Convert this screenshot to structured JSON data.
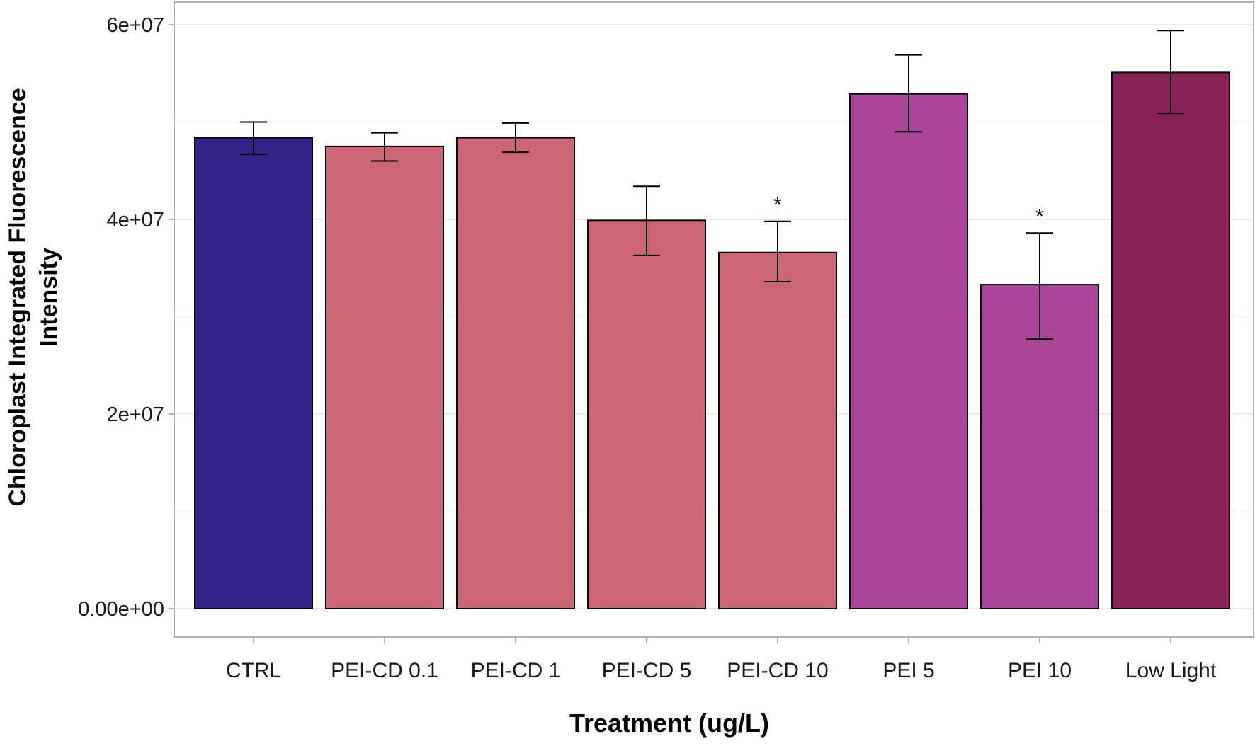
{
  "chart_data": {
    "type": "bar",
    "title": "",
    "xlabel": "Treatment (ug/L)",
    "ylabel": [
      "Chloroplast Integrated Fluorescence",
      "Intensity"
    ],
    "ylim": [
      0,
      60000000
    ],
    "yticks": [
      0,
      20000000,
      40000000,
      60000000
    ],
    "ytick_labels": [
      "0.00e+00",
      "2e+07",
      "4e+07",
      "6e+07"
    ],
    "grid": true,
    "legend": "none",
    "categories": [
      "CTRL",
      "PEI-CD 0.1",
      "PEI-CD 1",
      "PEI-CD 5",
      "PEI-CD 10",
      "PEI 5",
      "PEI 10",
      "Low Light"
    ],
    "values": [
      48400000,
      47500000,
      48400000,
      39900000,
      36600000,
      52900000,
      33300000,
      55100000
    ],
    "error_upper": [
      50000000,
      48900000,
      49900000,
      43400000,
      39800000,
      56900000,
      38600000,
      59400000
    ],
    "error_lower": [
      46700000,
      46000000,
      46900000,
      36300000,
      33600000,
      49000000,
      27700000,
      50900000
    ],
    "annotations": [
      "",
      "",
      "",
      "",
      "*",
      "",
      "*",
      ""
    ],
    "colors": [
      "#332288",
      "#CC6677",
      "#CC6677",
      "#CC6677",
      "#CC6677",
      "#AA4499",
      "#AA4499",
      "#882255"
    ]
  }
}
